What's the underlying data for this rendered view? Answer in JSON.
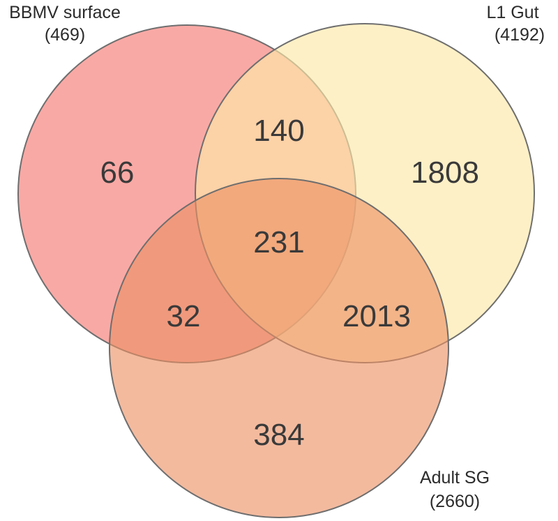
{
  "sets": [
    {
      "key": "a",
      "name": "BBMV surface",
      "total": "(469)",
      "color": "#f8938e"
    },
    {
      "key": "b",
      "name": "L1 Gut",
      "total": "(4192)",
      "color": "#fde8a8"
    },
    {
      "key": "c",
      "name": "Adult SG",
      "total": "(2660)",
      "color": "#ef9f75"
    }
  ],
  "regions": {
    "a_only": "66",
    "b_only": "1808",
    "c_only": "384",
    "ab": "140",
    "ac": "32",
    "bc": "2013",
    "abc": "231"
  }
}
